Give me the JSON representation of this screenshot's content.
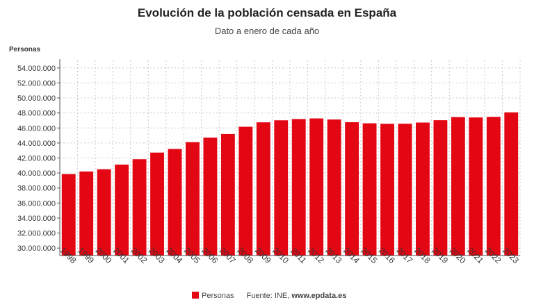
{
  "header": {
    "title": "Evolución de la población censada en España",
    "subtitle": "Dato a enero de cada año"
  },
  "chart_data": {
    "type": "bar",
    "title": "Evolución de la población censada en España",
    "subtitle": "Dato a enero de cada año",
    "ylabel": "Personas",
    "xlabel": "",
    "ylim": [
      29000000,
      55000000
    ],
    "grid": true,
    "legend": "bottom",
    "color": "#e30613",
    "yticks": [
      30000000,
      32000000,
      34000000,
      36000000,
      38000000,
      40000000,
      42000000,
      44000000,
      46000000,
      48000000,
      50000000,
      52000000,
      54000000
    ],
    "ytick_labels": [
      "30.000.000",
      "32.000.000",
      "34.000.000",
      "36.000.000",
      "38.000.000",
      "40.000.000",
      "42.000.000",
      "44.000.000",
      "46.000.000",
      "48.000.000",
      "50.000.000",
      "52.000.000",
      "54.000.000"
    ],
    "categories": [
      "1998",
      "1999",
      "2000",
      "2001",
      "2002",
      "2003",
      "2004",
      "2005",
      "2006",
      "2007",
      "2008",
      "2009",
      "2010",
      "2011",
      "2012",
      "2013",
      "2014",
      "2015",
      "2016",
      "2017",
      "2018",
      "2019",
      "2020",
      "2021",
      "2022",
      "2023"
    ],
    "series": [
      {
        "name": "Personas",
        "values": [
          39850000,
          40200000,
          40500000,
          41120000,
          41840000,
          42720000,
          43200000,
          44110000,
          44710000,
          45200000,
          46160000,
          46750000,
          47020000,
          47190000,
          47270000,
          47130000,
          46770000,
          46620000,
          46560000,
          46570000,
          46720000,
          47030000,
          47450000,
          47400000,
          47480000,
          48080000
        ]
      }
    ]
  },
  "legend": {
    "series_label": "Personas",
    "source": "Fuente: INE",
    "site": "www.epdata.es"
  }
}
